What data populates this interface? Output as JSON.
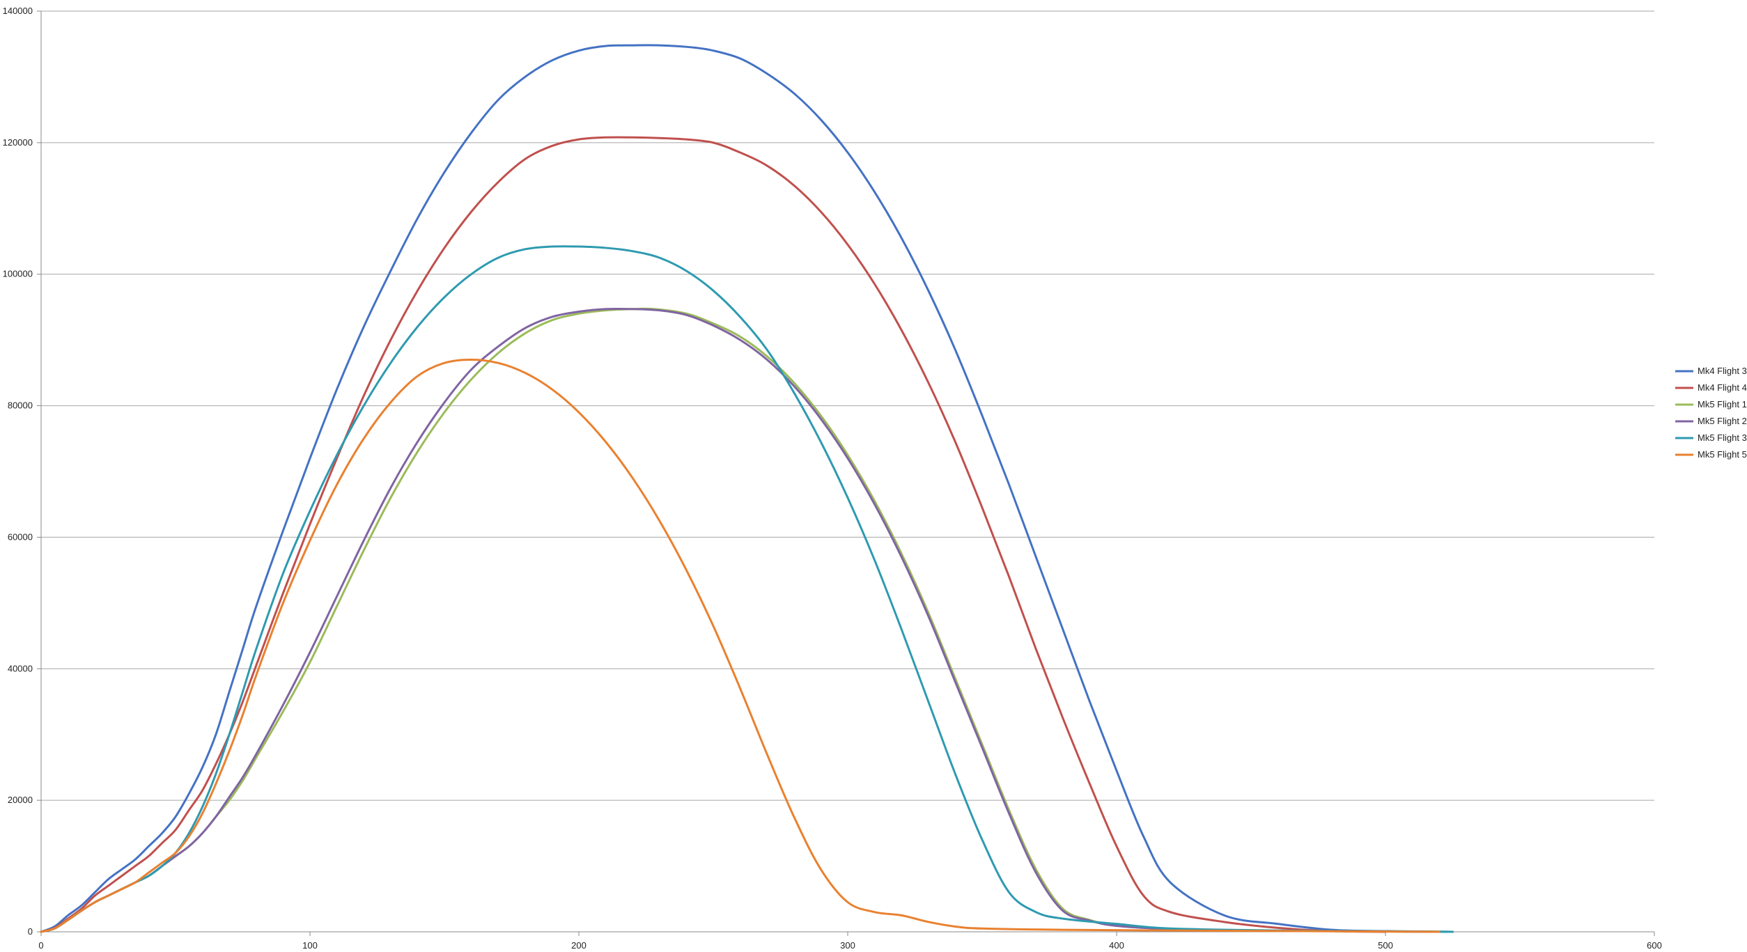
{
  "chart_data": {
    "type": "line",
    "title": "",
    "xlabel": "",
    "ylabel": "",
    "xlim": [
      0,
      600
    ],
    "ylim": [
      0,
      140000
    ],
    "x_ticks": [
      0,
      100,
      200,
      300,
      400,
      500,
      600
    ],
    "y_ticks": [
      0,
      20000,
      40000,
      60000,
      80000,
      100000,
      120000,
      140000
    ],
    "grid": "horizontal",
    "legend_position": "right",
    "series": [
      {
        "name": "Mk4 Flight 3",
        "color": "#4472C4",
        "points": [
          [
            0,
            0
          ],
          [
            5,
            800
          ],
          [
            10,
            2500
          ],
          [
            15,
            4000
          ],
          [
            20,
            6000
          ],
          [
            25,
            8000
          ],
          [
            30,
            9500
          ],
          [
            35,
            11000
          ],
          [
            40,
            13000
          ],
          [
            45,
            15000
          ],
          [
            50,
            17500
          ],
          [
            55,
            21000
          ],
          [
            60,
            25000
          ],
          [
            65,
            30000
          ],
          [
            70,
            36500
          ],
          [
            75,
            43000
          ],
          [
            80,
            49500
          ],
          [
            90,
            61000
          ],
          [
            100,
            72000
          ],
          [
            110,
            82500
          ],
          [
            120,
            92000
          ],
          [
            130,
            100500
          ],
          [
            140,
            108500
          ],
          [
            150,
            115500
          ],
          [
            160,
            121500
          ],
          [
            170,
            126500
          ],
          [
            180,
            130000
          ],
          [
            190,
            132500
          ],
          [
            200,
            134000
          ],
          [
            210,
            134700
          ],
          [
            220,
            134800
          ],
          [
            230,
            134800
          ],
          [
            242,
            134500
          ],
          [
            250,
            134000
          ],
          [
            260,
            132800
          ],
          [
            270,
            130500
          ],
          [
            280,
            127500
          ],
          [
            290,
            123500
          ],
          [
            300,
            118500
          ],
          [
            310,
            112500
          ],
          [
            320,
            105500
          ],
          [
            330,
            97500
          ],
          [
            340,
            88500
          ],
          [
            350,
            78500
          ],
          [
            360,
            68000
          ],
          [
            370,
            57000
          ],
          [
            380,
            46000
          ],
          [
            390,
            35000
          ],
          [
            400,
            24500
          ],
          [
            410,
            14500
          ],
          [
            420,
            7500
          ],
          [
            440,
            2500
          ],
          [
            460,
            1200
          ],
          [
            480,
            300
          ],
          [
            500,
            100
          ],
          [
            525,
            0
          ]
        ]
      },
      {
        "name": "Mk4 Flight 4",
        "color": "#C0504D",
        "points": [
          [
            0,
            0
          ],
          [
            5,
            600
          ],
          [
            10,
            2000
          ],
          [
            15,
            3500
          ],
          [
            20,
            5500
          ],
          [
            25,
            7000
          ],
          [
            30,
            8500
          ],
          [
            35,
            10000
          ],
          [
            40,
            11500
          ],
          [
            45,
            13500
          ],
          [
            50,
            15500
          ],
          [
            55,
            18500
          ],
          [
            60,
            21500
          ],
          [
            65,
            25500
          ],
          [
            70,
            30000
          ],
          [
            75,
            35000
          ],
          [
            80,
            40500
          ],
          [
            90,
            51500
          ],
          [
            100,
            62000
          ],
          [
            110,
            72000
          ],
          [
            120,
            81500
          ],
          [
            130,
            90000
          ],
          [
            140,
            97500
          ],
          [
            150,
            104000
          ],
          [
            160,
            109500
          ],
          [
            170,
            114000
          ],
          [
            180,
            117500
          ],
          [
            190,
            119500
          ],
          [
            200,
            120500
          ],
          [
            210,
            120800
          ],
          [
            220,
            120800
          ],
          [
            230,
            120700
          ],
          [
            240,
            120500
          ],
          [
            250,
            120000
          ],
          [
            260,
            118500
          ],
          [
            270,
            116500
          ],
          [
            280,
            113500
          ],
          [
            290,
            109500
          ],
          [
            300,
            104500
          ],
          [
            310,
            98500
          ],
          [
            320,
            91500
          ],
          [
            330,
            83500
          ],
          [
            340,
            74500
          ],
          [
            350,
            64500
          ],
          [
            360,
            54000
          ],
          [
            370,
            43000
          ],
          [
            380,
            32500
          ],
          [
            390,
            22500
          ],
          [
            400,
            13000
          ],
          [
            410,
            5500
          ],
          [
            420,
            3000
          ],
          [
            440,
            1500
          ],
          [
            460,
            600
          ],
          [
            480,
            100
          ],
          [
            500,
            0
          ]
        ]
      },
      {
        "name": "Mk5 Flight 1",
        "color": "#9BBB59",
        "points": [
          [
            0,
            0
          ],
          [
            5,
            500
          ],
          [
            10,
            1800
          ],
          [
            15,
            3200
          ],
          [
            20,
            4500
          ],
          [
            25,
            5500
          ],
          [
            30,
            6500
          ],
          [
            35,
            7500
          ],
          [
            40,
            8500
          ],
          [
            45,
            10000
          ],
          [
            50,
            11500
          ],
          [
            55,
            13000
          ],
          [
            60,
            15000
          ],
          [
            65,
            17500
          ],
          [
            70,
            20000
          ],
          [
            75,
            23000
          ],
          [
            80,
            26500
          ],
          [
            90,
            33500
          ],
          [
            100,
            41000
          ],
          [
            110,
            49500
          ],
          [
            120,
            58000
          ],
          [
            130,
            66000
          ],
          [
            140,
            73000
          ],
          [
            150,
            79000
          ],
          [
            160,
            84000
          ],
          [
            170,
            88000
          ],
          [
            180,
            91000
          ],
          [
            190,
            93000
          ],
          [
            200,
            94000
          ],
          [
            210,
            94500
          ],
          [
            220,
            94700
          ],
          [
            228,
            94700
          ],
          [
            240,
            94000
          ],
          [
            250,
            92500
          ],
          [
            260,
            90500
          ],
          [
            270,
            87500
          ],
          [
            280,
            83500
          ],
          [
            290,
            78500
          ],
          [
            300,
            72500
          ],
          [
            310,
            65500
          ],
          [
            320,
            57500
          ],
          [
            330,
            48500
          ],
          [
            340,
            38500
          ],
          [
            350,
            28500
          ],
          [
            360,
            18500
          ],
          [
            370,
            9500
          ],
          [
            380,
            3500
          ],
          [
            390,
            1800
          ],
          [
            400,
            1000
          ],
          [
            420,
            400
          ],
          [
            440,
            200
          ],
          [
            480,
            100
          ],
          [
            525,
            0
          ]
        ]
      },
      {
        "name": "Mk5 Flight 2",
        "color": "#8064A2",
        "points": [
          [
            0,
            0
          ],
          [
            5,
            500
          ],
          [
            10,
            1800
          ],
          [
            15,
            3200
          ],
          [
            20,
            4500
          ],
          [
            25,
            5500
          ],
          [
            30,
            6500
          ],
          [
            35,
            7500
          ],
          [
            40,
            8500
          ],
          [
            45,
            10000
          ],
          [
            50,
            11500
          ],
          [
            55,
            13000
          ],
          [
            60,
            15000
          ],
          [
            65,
            17500
          ],
          [
            70,
            20500
          ],
          [
            75,
            23500
          ],
          [
            80,
            27000
          ],
          [
            90,
            34500
          ],
          [
            100,
            42500
          ],
          [
            110,
            51000
          ],
          [
            120,
            59500
          ],
          [
            130,
            67500
          ],
          [
            140,
            74500
          ],
          [
            150,
            80500
          ],
          [
            160,
            85500
          ],
          [
            170,
            89000
          ],
          [
            180,
            91800
          ],
          [
            190,
            93500
          ],
          [
            200,
            94300
          ],
          [
            210,
            94700
          ],
          [
            220,
            94700
          ],
          [
            230,
            94500
          ],
          [
            240,
            93800
          ],
          [
            250,
            92200
          ],
          [
            260,
            90000
          ],
          [
            270,
            87000
          ],
          [
            280,
            83000
          ],
          [
            290,
            78000
          ],
          [
            300,
            72000
          ],
          [
            310,
            65000
          ],
          [
            320,
            57000
          ],
          [
            330,
            48000
          ],
          [
            340,
            38000
          ],
          [
            350,
            28000
          ],
          [
            360,
            18000
          ],
          [
            370,
            9000
          ],
          [
            380,
            3200
          ],
          [
            390,
            1700
          ],
          [
            400,
            900
          ],
          [
            420,
            400
          ],
          [
            440,
            200
          ],
          [
            480,
            100
          ],
          [
            520,
            0
          ]
        ]
      },
      {
        "name": "Mk5 Flight 3",
        "color": "#2E9AB0",
        "points": [
          [
            0,
            0
          ],
          [
            5,
            500
          ],
          [
            10,
            1800
          ],
          [
            15,
            3200
          ],
          [
            20,
            4500
          ],
          [
            25,
            5500
          ],
          [
            30,
            6500
          ],
          [
            35,
            7500
          ],
          [
            40,
            8500
          ],
          [
            45,
            10000
          ],
          [
            50,
            12000
          ],
          [
            55,
            15000
          ],
          [
            60,
            19000
          ],
          [
            65,
            24000
          ],
          [
            70,
            30000
          ],
          [
            75,
            36500
          ],
          [
            80,
            43000
          ],
          [
            90,
            54500
          ],
          [
            100,
            64000
          ],
          [
            110,
            72500
          ],
          [
            120,
            80000
          ],
          [
            130,
            86500
          ],
          [
            140,
            92000
          ],
          [
            150,
            96500
          ],
          [
            160,
            100000
          ],
          [
            170,
            102500
          ],
          [
            180,
            103800
          ],
          [
            190,
            104200
          ],
          [
            200,
            104200
          ],
          [
            210,
            104000
          ],
          [
            220,
            103500
          ],
          [
            230,
            102500
          ],
          [
            240,
            100500
          ],
          [
            250,
            97500
          ],
          [
            260,
            93500
          ],
          [
            270,
            88500
          ],
          [
            280,
            82000
          ],
          [
            290,
            74500
          ],
          [
            300,
            66000
          ],
          [
            310,
            56500
          ],
          [
            320,
            46000
          ],
          [
            330,
            35000
          ],
          [
            340,
            24000
          ],
          [
            350,
            14000
          ],
          [
            360,
            6000
          ],
          [
            370,
            3000
          ],
          [
            380,
            2000
          ],
          [
            400,
            1200
          ],
          [
            420,
            500
          ],
          [
            460,
            200
          ],
          [
            490,
            100
          ],
          [
            525,
            0
          ]
        ]
      },
      {
        "name": "Mk5 Flight 5",
        "color": "#E9812F",
        "points": [
          [
            0,
            0
          ],
          [
            5,
            500
          ],
          [
            10,
            1800
          ],
          [
            15,
            3200
          ],
          [
            20,
            4500
          ],
          [
            25,
            5500
          ],
          [
            30,
            6500
          ],
          [
            35,
            7500
          ],
          [
            40,
            9000
          ],
          [
            45,
            10500
          ],
          [
            50,
            12000
          ],
          [
            55,
            14500
          ],
          [
            60,
            18000
          ],
          [
            65,
            22500
          ],
          [
            70,
            27500
          ],
          [
            75,
            33000
          ],
          [
            80,
            39000
          ],
          [
            90,
            50000
          ],
          [
            100,
            59500
          ],
          [
            110,
            68000
          ],
          [
            120,
            75000
          ],
          [
            130,
            80500
          ],
          [
            140,
            84500
          ],
          [
            150,
            86500
          ],
          [
            160,
            87000
          ],
          [
            170,
            86500
          ],
          [
            180,
            85000
          ],
          [
            190,
            82500
          ],
          [
            200,
            79000
          ],
          [
            210,
            74500
          ],
          [
            220,
            69000
          ],
          [
            230,
            62500
          ],
          [
            240,
            55000
          ],
          [
            250,
            46500
          ],
          [
            260,
            37000
          ],
          [
            270,
            27000
          ],
          [
            280,
            17500
          ],
          [
            290,
            9500
          ],
          [
            300,
            4500
          ],
          [
            310,
            3000
          ],
          [
            320,
            2500
          ],
          [
            330,
            1500
          ],
          [
            340,
            800
          ],
          [
            350,
            500
          ],
          [
            380,
            300
          ],
          [
            420,
            200
          ],
          [
            470,
            100
          ],
          [
            520,
            0
          ]
        ]
      }
    ]
  }
}
